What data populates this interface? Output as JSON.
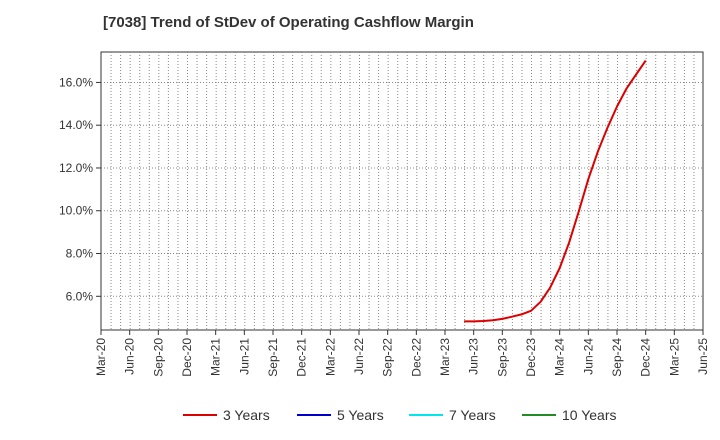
{
  "title": "[7038]  Trend of StDev of Operating Cashflow Margin",
  "chart_data": {
    "type": "line",
    "title": "[7038]  Trend of StDev of Operating Cashflow Margin",
    "x_ticks": [
      "Mar-20",
      "Jun-20",
      "Sep-20",
      "Dec-20",
      "Mar-21",
      "Jun-21",
      "Sep-21",
      "Dec-21",
      "Mar-22",
      "Jun-22",
      "Sep-22",
      "Dec-22",
      "Mar-23",
      "Jun-23",
      "Sep-23",
      "Dec-23",
      "Mar-24",
      "Jun-24",
      "Sep-24",
      "Dec-24",
      "Mar-25",
      "Jun-25"
    ],
    "y_ticks": [
      "6.0%",
      "8.0%",
      "10.0%",
      "12.0%",
      "14.0%",
      "16.0%"
    ],
    "ylim": [
      4.4,
      17.4
    ],
    "grid": true,
    "legend_position": "bottom",
    "series": [
      {
        "name": "3 Years",
        "color": "#dd0000",
        "x": [
          "May-23",
          "Jun-23",
          "Jul-23",
          "Aug-23",
          "Sep-23",
          "Oct-23",
          "Nov-23",
          "Dec-23",
          "Jan-24",
          "Feb-24",
          "Mar-24",
          "Apr-24",
          "May-24",
          "Jun-24",
          "Jul-24",
          "Aug-24",
          "Sep-24",
          "Oct-24",
          "Nov-24",
          "Dec-24"
        ],
        "values": [
          4.8,
          4.8,
          4.82,
          4.86,
          4.92,
          5.02,
          5.13,
          5.3,
          5.72,
          6.38,
          7.3,
          8.5,
          9.95,
          11.45,
          12.75,
          13.85,
          14.85,
          15.7,
          16.35,
          17.0
        ]
      },
      {
        "name": "5 Years",
        "color": "#0000cc",
        "x": [],
        "values": []
      },
      {
        "name": "7 Years",
        "color": "#00e5ee",
        "x": [],
        "values": []
      },
      {
        "name": "10 Years",
        "color": "#228b22",
        "x": [],
        "values": []
      }
    ]
  }
}
